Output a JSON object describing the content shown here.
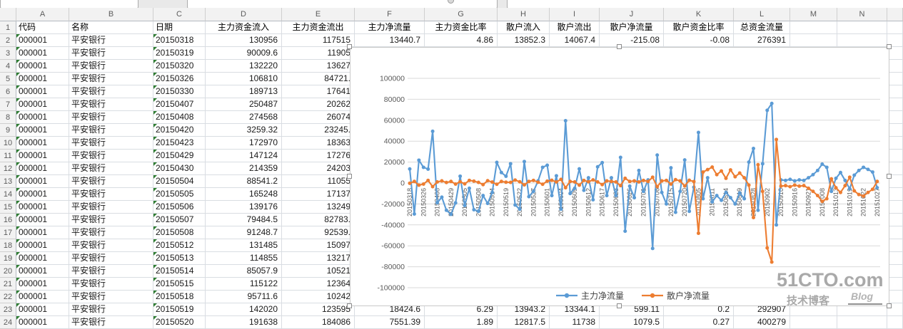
{
  "sheet": {
    "column_letters": [
      "A",
      "B",
      "C",
      "D",
      "E",
      "F",
      "G",
      "H",
      "I",
      "J",
      "K",
      "L",
      "M",
      "N"
    ],
    "header_row": {
      "n": "1",
      "cells": [
        "代码",
        "名称",
        "日期",
        "主力资金流入",
        "主力资金流出",
        "主力净流量",
        "主力资金比率",
        "散户流入",
        "散户流出",
        "散户净流量",
        "散户资金比率",
        "总资金流量"
      ]
    },
    "rows": [
      {
        "n": "2",
        "cells": [
          "000001",
          "平安银行",
          "20150318",
          "130956",
          "117515",
          "13440.7",
          "4.86",
          "13852.3",
          "14067.4",
          "-215.08",
          "-0.08",
          "276391"
        ]
      },
      {
        "n": "3",
        "cells": [
          "000001",
          "平安银行",
          "20150319",
          "90009.6",
          "11905",
          "",
          "",
          "",
          "",
          "",
          "",
          ""
        ]
      },
      {
        "n": "4",
        "cells": [
          "000001",
          "平安银行",
          "20150320",
          "132220",
          "13627",
          "",
          "",
          "",
          "",
          "",
          "",
          ""
        ]
      },
      {
        "n": "5",
        "cells": [
          "000001",
          "平安银行",
          "20150326",
          "106810",
          "84721.",
          "",
          "",
          "",
          "",
          "",
          "",
          ""
        ]
      },
      {
        "n": "6",
        "cells": [
          "000001",
          "平安银行",
          "20150330",
          "189713",
          "17641",
          "",
          "",
          "",
          "",
          "",
          "",
          ""
        ]
      },
      {
        "n": "7",
        "cells": [
          "000001",
          "平安银行",
          "20150407",
          "250487",
          "20262",
          "",
          "",
          "",
          "",
          "",
          "",
          ""
        ]
      },
      {
        "n": "8",
        "cells": [
          "000001",
          "平安银行",
          "20150408",
          "274568",
          "26074",
          "",
          "",
          "",
          "",
          "",
          "",
          ""
        ]
      },
      {
        "n": "9",
        "cells": [
          "000001",
          "平安银行",
          "20150420",
          "3259.32",
          "23245.",
          "",
          "",
          "",
          "",
          "",
          "",
          ""
        ]
      },
      {
        "n": "10",
        "cells": [
          "000001",
          "平安银行",
          "20150423",
          "172970",
          "18363",
          "",
          "",
          "",
          "",
          "",
          "",
          ""
        ]
      },
      {
        "n": "11",
        "cells": [
          "000001",
          "平安银行",
          "20150429",
          "147124",
          "17276",
          "",
          "",
          "",
          "",
          "",
          "",
          ""
        ]
      },
      {
        "n": "12",
        "cells": [
          "000001",
          "平安银行",
          "20150430",
          "214359",
          "24203",
          "",
          "",
          "",
          "",
          "",
          "",
          ""
        ]
      },
      {
        "n": "13",
        "cells": [
          "000001",
          "平安银行",
          "20150504",
          "88541.2",
          "11055",
          "",
          "",
          "",
          "",
          "",
          "",
          ""
        ]
      },
      {
        "n": "14",
        "cells": [
          "000001",
          "平安银行",
          "20150505",
          "165248",
          "17137",
          "",
          "",
          "",
          "",
          "",
          "",
          ""
        ]
      },
      {
        "n": "15",
        "cells": [
          "000001",
          "平安银行",
          "20150506",
          "139176",
          "13249",
          "",
          "",
          "",
          "",
          "",
          "",
          ""
        ]
      },
      {
        "n": "16",
        "cells": [
          "000001",
          "平安银行",
          "20150507",
          "79484.5",
          "82783.",
          "",
          "",
          "",
          "",
          "",
          "",
          ""
        ]
      },
      {
        "n": "17",
        "cells": [
          "000001",
          "平安银行",
          "20150508",
          "91248.7",
          "92539.",
          "",
          "",
          "",
          "",
          "",
          "",
          ""
        ]
      },
      {
        "n": "18",
        "cells": [
          "000001",
          "平安银行",
          "20150512",
          "131485",
          "15097",
          "",
          "",
          "",
          "",
          "",
          "",
          ""
        ]
      },
      {
        "n": "19",
        "cells": [
          "000001",
          "平安银行",
          "20150513",
          "114855",
          "13217",
          "",
          "",
          "",
          "",
          "",
          "",
          ""
        ]
      },
      {
        "n": "20",
        "cells": [
          "000001",
          "平安银行",
          "20150514",
          "85057.9",
          "10521",
          "",
          "",
          "",
          "",
          "",
          "",
          ""
        ]
      },
      {
        "n": "21",
        "cells": [
          "000001",
          "平安银行",
          "20150515",
          "115122",
          "12364",
          "",
          "",
          "",
          "",
          "",
          "",
          ""
        ]
      },
      {
        "n": "22",
        "cells": [
          "000001",
          "平安银行",
          "20150518",
          "95711.6",
          "10242",
          "",
          "",
          "",
          "",
          "",
          "",
          ""
        ]
      },
      {
        "n": "23",
        "cells": [
          "000001",
          "平安银行",
          "20150519",
          "142020",
          "123595",
          "18424.6",
          "6.29",
          "13943.2",
          "13344.1",
          "599.11",
          "0.2",
          "292907"
        ]
      },
      {
        "n": "24",
        "cells": [
          "000001",
          "平安银行",
          "20150520",
          "191638",
          "184086",
          "7551.39",
          "1.89",
          "12817.5",
          "11738",
          "1079.5",
          "0.27",
          "400279"
        ]
      }
    ]
  },
  "chart_data": {
    "type": "line",
    "title": "",
    "legend": [
      "主力净流量",
      "散户净流量"
    ],
    "legend_position": "bottom",
    "grid": true,
    "ylim": [
      -100000,
      100000
    ],
    "y_ticks": [
      "100000",
      "80000",
      "60000",
      "40000",
      "20000",
      "0",
      "-20000",
      "-40000",
      "-60000",
      "-80000",
      "-100000"
    ],
    "points_per_tick": 3,
    "x_tick_labels": [
      "20150318",
      "20150326",
      "20150408",
      "20150429",
      "20150505",
      "20150508",
      "20150514",
      "20150519",
      "20150522",
      "20150527",
      "20150601",
      "20150604",
      "20150609",
      "20150612",
      "20150617",
      "20150623",
      "20150626",
      "20150701",
      "20150706",
      "20150715",
      "20150720",
      "20150805",
      "20150811",
      "20150814",
      "20150819",
      "20150828",
      "20150902",
      "20150910",
      "20150916",
      "20150921",
      "20151008",
      "20151013",
      "20151019",
      "20151022",
      "20151027"
    ],
    "series": [
      {
        "name": "主力净流量",
        "color": "#5B9BD5",
        "values": [
          13440,
          -29600,
          21800,
          15000,
          13300,
          49400,
          -18900,
          -13500,
          -26000,
          -29900,
          -19000,
          6500,
          -21500,
          -5000,
          -25500,
          -27000,
          -12000,
          -19500,
          -9000,
          19700,
          10000,
          6500,
          18400,
          -21000,
          -25000,
          20500,
          -13000,
          -8000,
          2000,
          15000,
          17000,
          -12000,
          6900,
          -25000,
          59500,
          -10000,
          -5000,
          13500,
          -7000,
          5000,
          -16000,
          15500,
          19500,
          -12000,
          5000,
          -12000,
          24500,
          -46000,
          -3000,
          -14000,
          12000,
          -8000,
          3000,
          -62500,
          26700,
          -9000,
          -20000,
          14500,
          -28000,
          -8000,
          22000,
          -27000,
          -4000,
          48300,
          -15000,
          5000,
          -18000,
          -12000,
          -16500,
          -9000,
          -14000,
          -20000,
          -9500,
          -15000,
          20000,
          33000,
          -26000,
          18400,
          69500,
          76000,
          -40000,
          3000,
          2500,
          3500,
          2000,
          3000,
          2500,
          5000,
          8000,
          12000,
          18000,
          15000,
          -8000,
          4500,
          10000,
          2500,
          -5500,
          7500,
          12000,
          15000,
          13000,
          10500,
          -4500
        ]
      },
      {
        "name": "散户净流量",
        "color": "#ED7D31",
        "values": [
          -215,
          1500,
          -2000,
          -1000,
          2500,
          -3500,
          1000,
          2000,
          500,
          1500,
          -1000,
          1200,
          -800,
          2500,
          1800,
          600,
          -1500,
          2200,
          900,
          -1200,
          1500,
          800,
          600,
          2800,
          1200,
          -1800,
          1500,
          2500,
          800,
          -1200,
          1800,
          2600,
          1000,
          3500,
          -4500,
          1500,
          1000,
          -2000,
          2500,
          1200,
          3000,
          1000,
          -1500,
          2000,
          1500,
          1000,
          -2500,
          4500,
          1500,
          2000,
          1000,
          2500,
          1500,
          5500,
          -3500,
          2000,
          2500,
          -1000,
          3200,
          2000,
          -2800,
          2600,
          1400,
          -48000,
          10500,
          12800,
          15200,
          8000,
          11500,
          4500,
          12500,
          6000,
          9500,
          5000,
          -2000,
          -33000,
          17500,
          -8000,
          -62000,
          -75500,
          41600,
          -3000,
          -2500,
          -3500,
          -2000,
          -3000,
          -2500,
          -5000,
          -8000,
          -12000,
          -17500,
          -15000,
          4000,
          -4500,
          -9000,
          -2500,
          5500,
          -7500,
          -11000,
          -12500,
          -9000,
          -6000,
          1500
        ]
      }
    ]
  },
  "watermark": {
    "line1": "51CTO.com",
    "line2": "技术博客",
    "line3": "Blog"
  }
}
